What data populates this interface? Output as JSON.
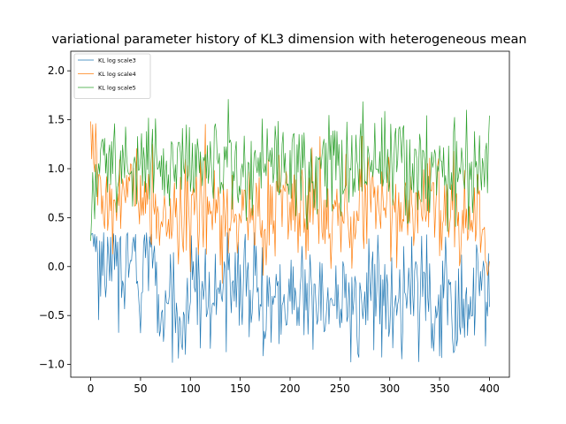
{
  "chart_data": {
    "type": "line",
    "title": "variational parameter history of KL3 dimension with heterogeneous mean",
    "xlabel": "",
    "ylabel": "",
    "xlim": [
      -20,
      420
    ],
    "ylim": [
      -1.13,
      2.2
    ],
    "xticks": [
      0,
      50,
      100,
      150,
      200,
      250,
      300,
      350,
      400
    ],
    "xtick_labels": [
      "0",
      "50",
      "100",
      "150",
      "200",
      "250",
      "300",
      "350",
      "400"
    ],
    "yticks": [
      -1.0,
      -0.5,
      0.0,
      0.5,
      1.0,
      1.5,
      2.0
    ],
    "ytick_labels": [
      "−1.0",
      "−0.5",
      "0.0",
      "0.5",
      "1.0",
      "1.5",
      "2.0"
    ],
    "grid": false,
    "legend_position": "top-left",
    "series": [
      {
        "name": "KL log scale3",
        "color": "#1f77b4",
        "x_start": 0,
        "x_step": 10,
        "values": [
          0.45,
          0.05,
          0.0,
          0.1,
          0.05,
          -0.2,
          0.1,
          -0.45,
          -0.5,
          -0.6,
          -0.3,
          -0.2,
          -0.45,
          -0.25,
          -0.2,
          -0.15,
          -0.3,
          -0.35,
          -0.3,
          -0.45,
          -0.35,
          -0.3,
          -0.2,
          -0.5,
          -0.35,
          -0.45,
          -0.4,
          -0.3,
          -0.25,
          -0.3,
          -0.3,
          -0.3,
          -0.25,
          -0.2,
          -0.35,
          -0.3,
          -0.3,
          -0.3,
          -0.35,
          -0.25,
          -0.1
        ],
        "mean": -0.1,
        "spread": 0.3,
        "min": -0.98,
        "max": 0.35
      },
      {
        "name": "KL log scale4",
        "color": "#ff7f0e",
        "x_start": 0,
        "x_step": 10,
        "values": [
          1.5,
          0.7,
          0.6,
          0.7,
          0.8,
          0.6,
          0.7,
          0.55,
          0.6,
          0.65,
          0.55,
          0.6,
          0.6,
          0.55,
          0.6,
          0.5,
          0.55,
          0.6,
          0.5,
          0.6,
          0.6,
          0.55,
          0.6,
          0.55,
          0.5,
          0.6,
          0.55,
          0.6,
          0.55,
          0.6,
          0.5,
          0.6,
          0.55,
          0.55,
          0.6,
          0.55,
          0.6,
          0.55,
          0.6,
          0.5,
          0.05
        ],
        "mean": 0.6,
        "spread": 0.28,
        "min": -0.35,
        "max": 1.5
      },
      {
        "name": "KL log scale5",
        "color": "#2ca02c",
        "x_start": 0,
        "x_step": 10,
        "values": [
          0.5,
          1.2,
          1.05,
          0.95,
          1.05,
          1.1,
          1.0,
          1.05,
          1.0,
          1.1,
          1.0,
          1.05,
          1.0,
          1.05,
          1.1,
          1.0,
          1.05,
          1.0,
          1.0,
          1.05,
          1.0,
          1.05,
          1.05,
          1.0,
          1.05,
          1.0,
          1.1,
          1.05,
          1.0,
          1.05,
          1.1,
          1.05,
          1.0,
          1.05,
          1.0,
          1.05,
          1.0,
          1.05,
          1.0,
          1.05,
          1.2
        ],
        "mean": 1.05,
        "spread": 0.25,
        "min": 0.25,
        "max": 2.03
      }
    ]
  }
}
